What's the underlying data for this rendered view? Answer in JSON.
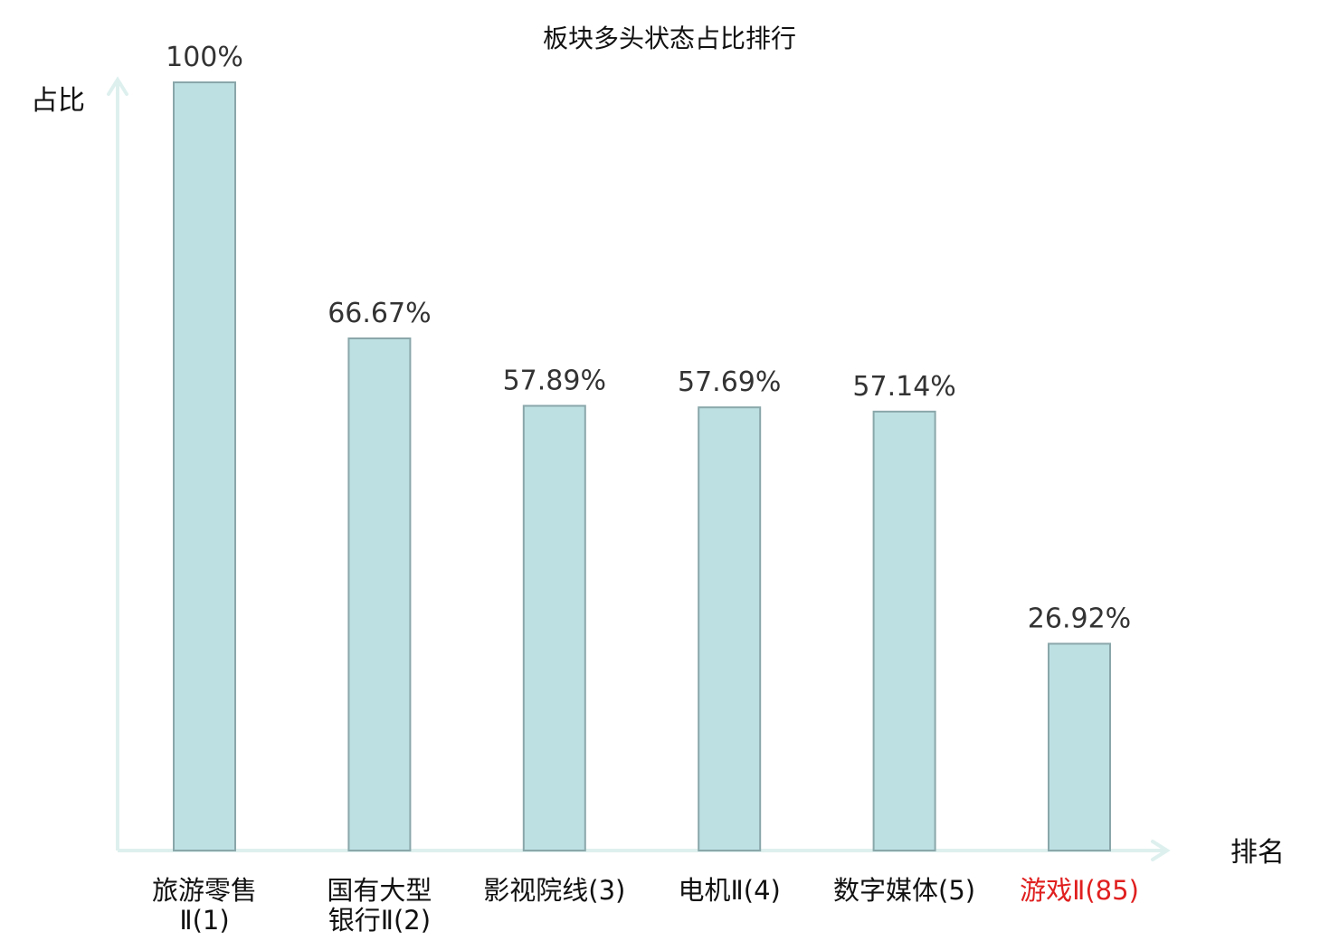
{
  "chart_data": {
    "type": "bar",
    "title": "板块多头状态占比排行",
    "ylabel": "占比",
    "xlabel": "排名",
    "ylim": [
      0,
      100
    ],
    "grid": false,
    "categories": [
      {
        "lines": [
          "旅游零售",
          "Ⅱ(1)"
        ],
        "highlight": false
      },
      {
        "lines": [
          "国有大型",
          "银行Ⅱ(2)"
        ],
        "highlight": false
      },
      {
        "lines": [
          "影视院线(3)"
        ],
        "highlight": false
      },
      {
        "lines": [
          "电机Ⅱ(4)"
        ],
        "highlight": false
      },
      {
        "lines": [
          "数字媒体(5)"
        ],
        "highlight": false
      },
      {
        "lines": [
          "游戏Ⅱ(85)"
        ],
        "highlight": true
      }
    ],
    "values": [
      100,
      66.67,
      57.89,
      57.69,
      57.14,
      26.92
    ],
    "value_labels": [
      "100%",
      "66.67%",
      "57.89%",
      "57.69%",
      "57.14%",
      "26.92%"
    ],
    "colors": {
      "bar_fill": "#bde0e3",
      "bar_stroke": "#8aa7aa",
      "axis": "#def0ee",
      "highlight_text": "#e01f1f",
      "normal_text": "#111111"
    }
  }
}
